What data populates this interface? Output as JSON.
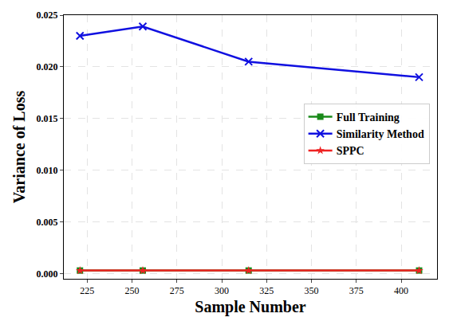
{
  "chart_data": {
    "type": "line",
    "x_label": "Sample Number",
    "y_label": "Variance of Loss",
    "x": [
      221,
      256,
      315,
      410
    ],
    "series": [
      {
        "name": "Full Training",
        "color": "#1a8a1a",
        "marker": "square",
        "values": [
          0.0003,
          0.0003,
          0.0003,
          0.0003
        ]
      },
      {
        "name": "Similarity Method",
        "color": "#1010e0",
        "marker": "x",
        "values": [
          0.023,
          0.0239,
          0.0205,
          0.019
        ]
      },
      {
        "name": "SPPC",
        "color": "#ee2222",
        "marker": "star",
        "values": [
          0.0003,
          0.0003,
          0.0003,
          0.0003
        ]
      }
    ],
    "xlim": [
      212,
      420
    ],
    "xticks": [
      225,
      250,
      275,
      300,
      325,
      350,
      375,
      400
    ],
    "ylim": [
      -0.0005,
      0.025
    ],
    "yticks": [
      {
        "value": 0,
        "label": "0.000"
      },
      0.005,
      {
        "value": 0.01,
        "label": "0.010"
      },
      0.015,
      {
        "value": 0.02,
        "label": "0.020"
      },
      0.025
    ],
    "grid": true,
    "legend": "right"
  }
}
